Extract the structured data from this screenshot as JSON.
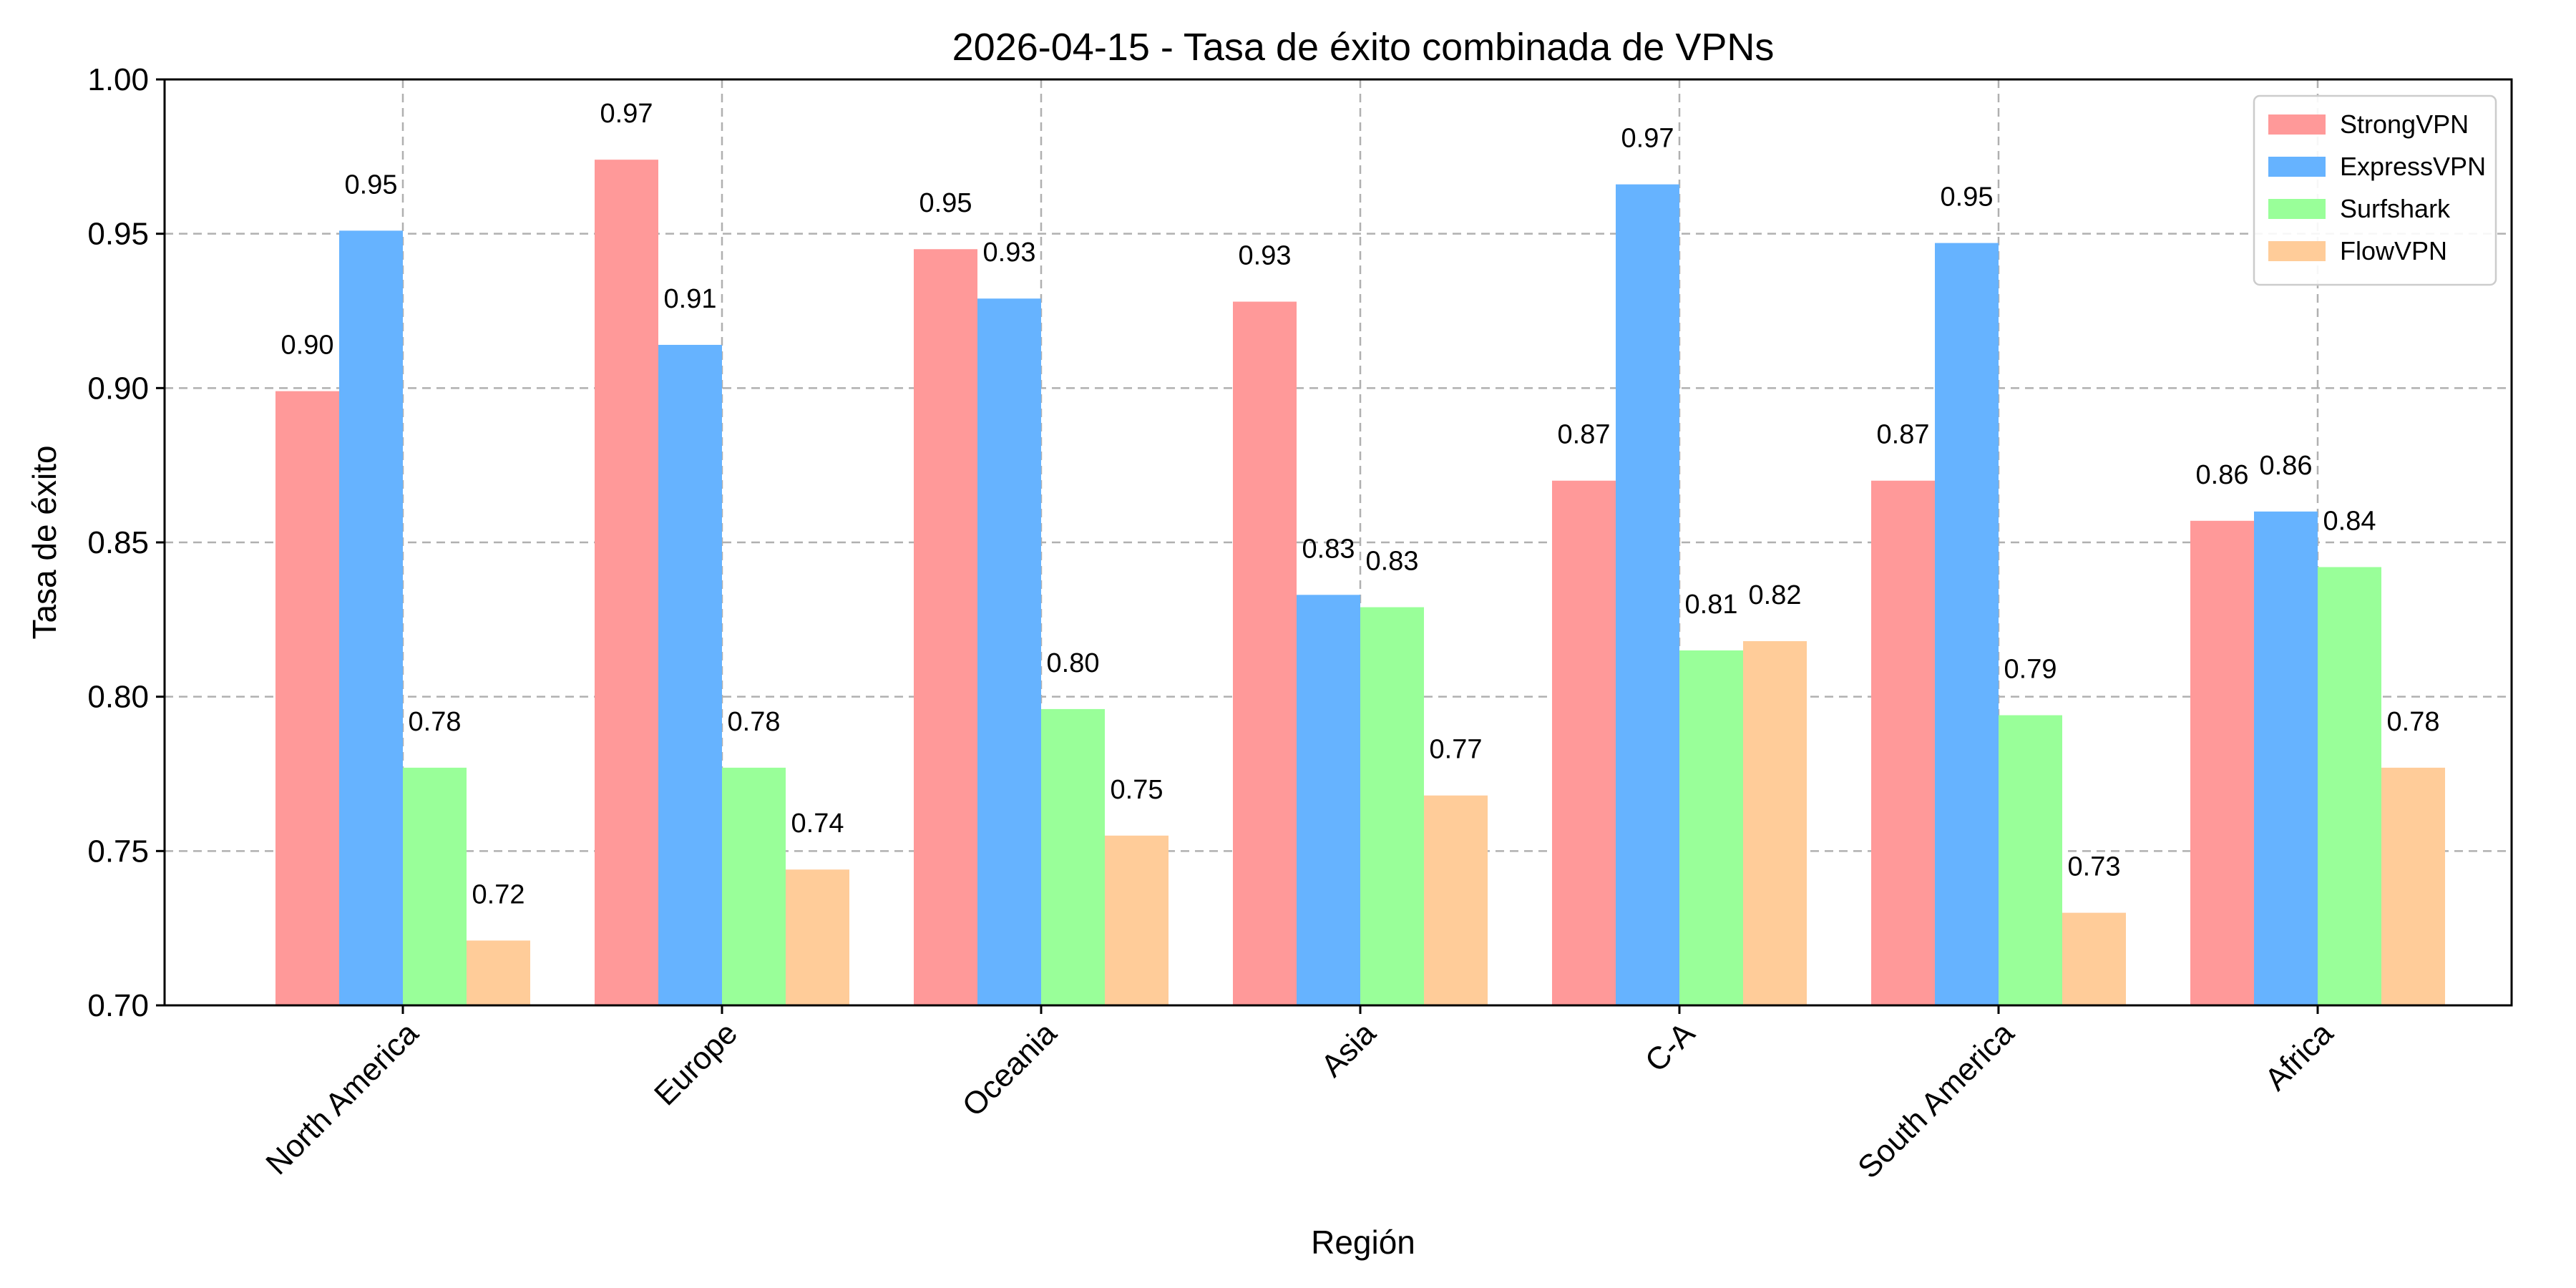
{
  "chart_data": {
    "type": "bar",
    "title": "2026-04-15 - Tasa de éxito combinada de VPNs",
    "xlabel": "Región",
    "ylabel": "Tasa de éxito",
    "categories": [
      "North America",
      "Europe",
      "Oceania",
      "Asia",
      "C-A",
      "South America",
      "Africa"
    ],
    "series": [
      {
        "name": "StrongVPN",
        "color": "#ff9999",
        "values": [
          0.899,
          0.974,
          0.945,
          0.928,
          0.87,
          0.87,
          0.857
        ],
        "labels": [
          "0.90",
          "0.97",
          "0.95",
          "0.93",
          "0.87",
          "0.87",
          "0.86"
        ]
      },
      {
        "name": "ExpressVPN",
        "color": "#66b3ff",
        "values": [
          0.951,
          0.914,
          0.929,
          0.833,
          0.966,
          0.947,
          0.86
        ],
        "labels": [
          "0.95",
          "0.91",
          "0.93",
          "0.83",
          "0.97",
          "0.95",
          "0.86"
        ]
      },
      {
        "name": "Surfshark",
        "color": "#99ff99",
        "values": [
          0.777,
          0.777,
          0.796,
          0.829,
          0.815,
          0.794,
          0.842
        ],
        "labels": [
          "0.78",
          "0.78",
          "0.80",
          "0.83",
          "0.81",
          "0.79",
          "0.84"
        ]
      },
      {
        "name": "FlowVPN",
        "color": "#ffcc99",
        "values": [
          0.721,
          0.744,
          0.755,
          0.768,
          0.818,
          0.73,
          0.777
        ],
        "labels": [
          "0.72",
          "0.74",
          "0.75",
          "0.77",
          "0.82",
          "0.73",
          "0.78"
        ]
      }
    ],
    "ylim": [
      0.7,
      1.0
    ],
    "yticks": [
      "0.70",
      "0.75",
      "0.80",
      "0.85",
      "0.90",
      "0.95",
      "1.00"
    ],
    "ytick_values": [
      0.7,
      0.75,
      0.8,
      0.85,
      0.9,
      0.95,
      1.0
    ],
    "grid": true,
    "legend_position": "top-right"
  }
}
